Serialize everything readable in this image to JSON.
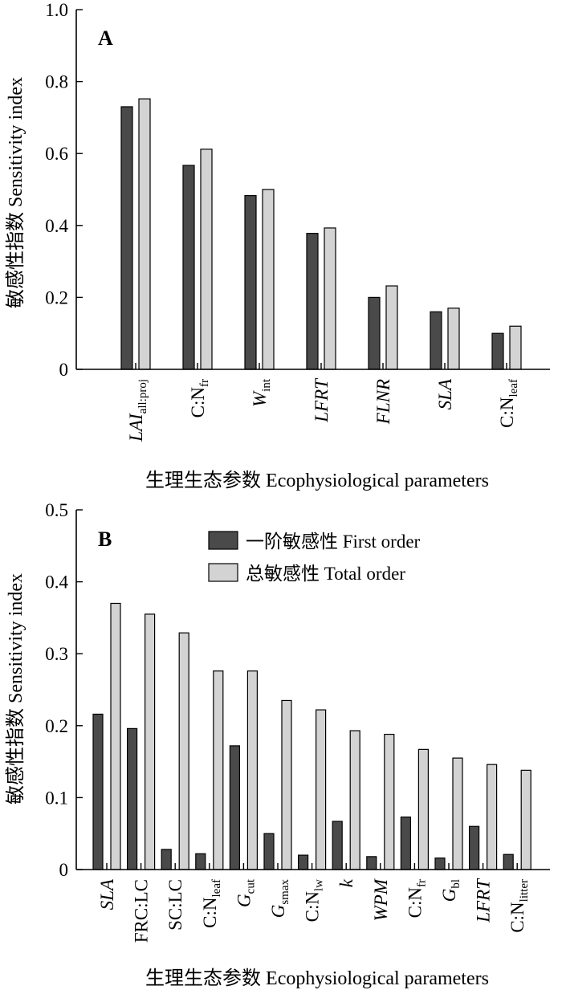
{
  "chart_data": [
    {
      "type": "bar",
      "panel_label": "A",
      "ylabel": "敏感性指数 Sensitivity index",
      "xlabel": "生理生态参数 Ecophysiological parameters",
      "ylim": [
        0,
        1.0
      ],
      "yticks": [
        {
          "value": 0,
          "label": "0"
        },
        {
          "value": 0.2,
          "label": "0.2"
        },
        {
          "value": 0.4,
          "label": "0.4"
        },
        {
          "value": 0.6,
          "label": "0.6"
        },
        {
          "value": 0.8,
          "label": "0.8"
        },
        {
          "value": 1.0,
          "label": "1.0"
        }
      ],
      "categories": [
        {
          "base": "LAI",
          "sub": "all:proj",
          "italic": true
        },
        {
          "base": "C:N",
          "sub": "fr",
          "italic": false
        },
        {
          "base": "W",
          "sub": "int",
          "italic": true
        },
        {
          "base": "LFRT",
          "sub": "",
          "italic": true
        },
        {
          "base": "FLNR",
          "sub": "",
          "italic": true
        },
        {
          "base": "SLA",
          "sub": "",
          "italic": true
        },
        {
          "base": "C:N",
          "sub": "leaf",
          "italic": false
        }
      ],
      "series": [
        {
          "key": "first",
          "values": [
            0.73,
            0.567,
            0.483,
            0.378,
            0.2,
            0.16,
            0.1
          ]
        },
        {
          "key": "total",
          "values": [
            0.752,
            0.612,
            0.5,
            0.393,
            0.232,
            0.17,
            0.12
          ]
        }
      ],
      "grid": false
    },
    {
      "type": "bar",
      "panel_label": "B",
      "ylabel": "敏感性指数 Sensitivity index",
      "xlabel": "生理生态参数 Ecophysiological parameters",
      "ylim": [
        0,
        0.5
      ],
      "yticks": [
        {
          "value": 0,
          "label": "0"
        },
        {
          "value": 0.1,
          "label": "0.1"
        },
        {
          "value": 0.2,
          "label": "0.2"
        },
        {
          "value": 0.3,
          "label": "0.3"
        },
        {
          "value": 0.4,
          "label": "0.4"
        },
        {
          "value": 0.5,
          "label": "0.5"
        }
      ],
      "categories": [
        {
          "base": "SLA",
          "sub": "",
          "italic": true
        },
        {
          "base": "FRC:LC",
          "sub": "",
          "italic": false
        },
        {
          "base": "SC:LC",
          "sub": "",
          "italic": false
        },
        {
          "base": "C:N",
          "sub": "leaf",
          "italic": false
        },
        {
          "base": "G",
          "sub": "cut",
          "italic": true
        },
        {
          "base": "G",
          "sub": "smax",
          "italic": true
        },
        {
          "base": "C:N",
          "sub": "lw",
          "italic": false
        },
        {
          "base": "k",
          "sub": "",
          "italic": true
        },
        {
          "base": "WPM",
          "sub": "",
          "italic": true
        },
        {
          "base": "C:N",
          "sub": "fr",
          "italic": false
        },
        {
          "base": "G",
          "sub": "bl",
          "italic": true
        },
        {
          "base": "LFRT",
          "sub": "",
          "italic": true
        },
        {
          "base": "C:N",
          "sub": "litter",
          "italic": false
        }
      ],
      "series": [
        {
          "key": "first",
          "name": "一阶敏感性 First order",
          "values": [
            0.216,
            0.196,
            0.028,
            0.022,
            0.172,
            0.05,
            0.02,
            0.067,
            0.018,
            0.073,
            0.016,
            0.06,
            0.021
          ]
        },
        {
          "key": "total",
          "name": "总敏感性 Total order",
          "values": [
            0.37,
            0.355,
            0.329,
            0.276,
            0.276,
            0.235,
            0.222,
            0.193,
            0.188,
            0.167,
            0.155,
            0.146,
            0.138
          ]
        }
      ],
      "legend": "top-right",
      "grid": false
    }
  ]
}
